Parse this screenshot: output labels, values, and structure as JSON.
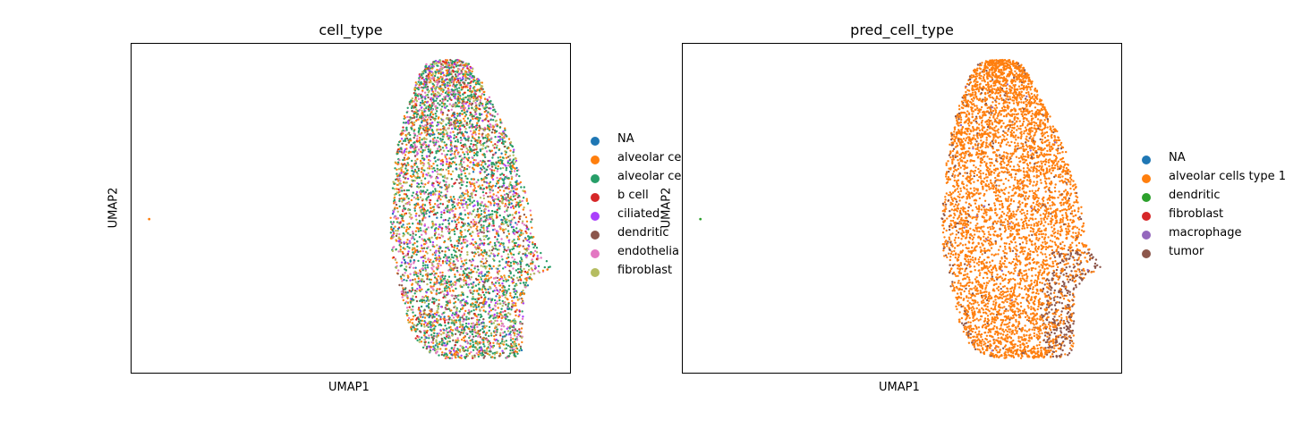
{
  "chart_data": [
    {
      "type": "scatter",
      "title": "cell_type",
      "xlabel": "UMAP1",
      "ylabel": "UMAP2",
      "grid": false,
      "legend_placement": "right",
      "categories": [
        {
          "name": "NA",
          "color": "#1f77b4"
        },
        {
          "name": "alveolar ce",
          "color": "#ff7f0e"
        },
        {
          "name": "alveolar ce",
          "color": "#279e68"
        },
        {
          "name": "b cell",
          "color": "#d62728"
        },
        {
          "name": "ciliated",
          "color": "#aa40fc"
        },
        {
          "name": "dendritic",
          "color": "#8c564b"
        },
        {
          "name": "endothelia",
          "color": "#e377c2"
        },
        {
          "name": "fibroblast",
          "color": "#b5bd61"
        }
      ],
      "outlier": {
        "x": 0.04,
        "y": 0.53,
        "category": "alveolar ce"
      }
    },
    {
      "type": "scatter",
      "title": "pred_cell_type",
      "xlabel": "UMAP1",
      "ylabel": "UMAP2",
      "grid": false,
      "legend_placement": "right",
      "categories": [
        {
          "name": "NA",
          "color": "#1f77b4"
        },
        {
          "name": "alveolar cells type 1",
          "color": "#ff7f0e"
        },
        {
          "name": "dendritic",
          "color": "#2ca02c"
        },
        {
          "name": "fibroblast",
          "color": "#d62728"
        },
        {
          "name": "macrophage",
          "color": "#9467bd"
        },
        {
          "name": "tumor",
          "color": "#8c564b"
        }
      ],
      "outlier": {
        "x": 0.04,
        "y": 0.53,
        "category": "dendritic"
      }
    }
  ]
}
